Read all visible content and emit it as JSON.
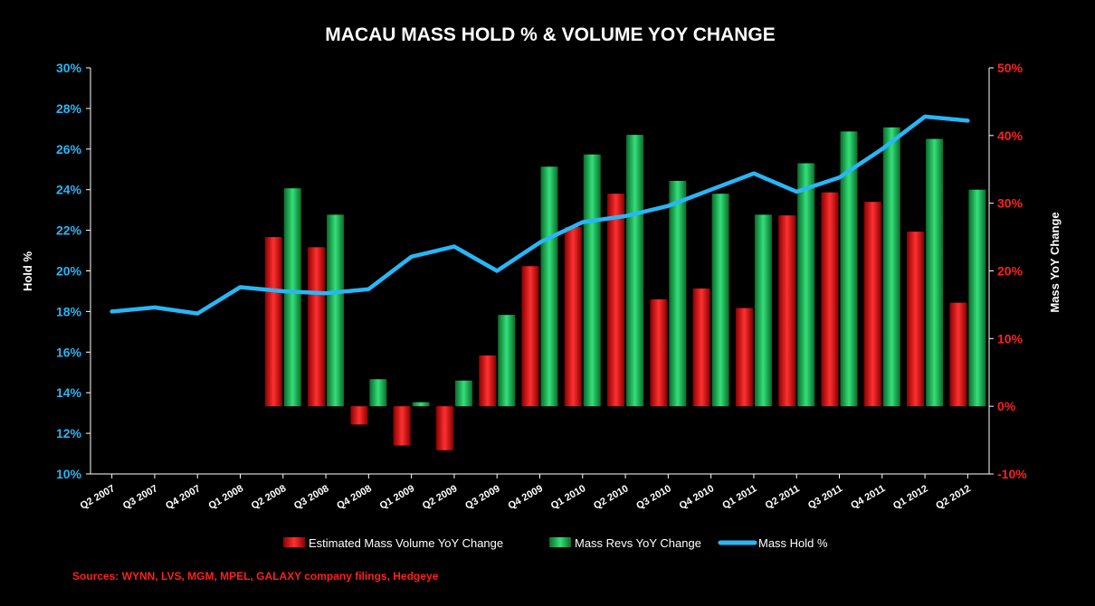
{
  "chart_data": {
    "type": "bar",
    "title": "MACAU MASS HOLD % & VOLUME YOY CHANGE",
    "source": "Sources: WYNN, LVS, MGM, MPEL, GALAXY company filings, Hedgeye",
    "ylabel_left": "Hold %",
    "ylabel_right": "Mass YoY Change",
    "ylim_left": [
      0.1,
      0.3
    ],
    "ylim_right": [
      -0.1,
      0.5
    ],
    "yticks_left": [
      "10%",
      "12%",
      "14%",
      "16%",
      "18%",
      "20%",
      "22%",
      "24%",
      "26%",
      "28%",
      "30%"
    ],
    "yticks_right": [
      "-10%",
      "0%",
      "10%",
      "20%",
      "30%",
      "40%",
      "50%"
    ],
    "categories": [
      "Q2 2007",
      "Q3 2007",
      "Q4 2007",
      "Q1 2008",
      "Q2 2008",
      "Q3 2008",
      "Q4 2008",
      "Q1 2009",
      "Q2 2009",
      "Q3 2009",
      "Q4 2009",
      "Q1 2010",
      "Q2 2010",
      "Q3 2010",
      "Q4 2010",
      "Q1 2011",
      "Q2 2011",
      "Q3 2011",
      "Q4 2011",
      "Q1 2012",
      "Q2 2012"
    ],
    "series": [
      {
        "name": "Estimated Mass Volume YoY Change",
        "axis": "right",
        "kind": "bar",
        "color": "#ff1a1a",
        "values": [
          null,
          null,
          null,
          null,
          0.25,
          0.235,
          -0.027,
          -0.058,
          -0.065,
          0.075,
          0.207,
          0.265,
          0.314,
          0.158,
          0.174,
          0.145,
          0.282,
          0.316,
          0.302,
          0.258,
          0.153
        ]
      },
      {
        "name": "Mass Revs YoY Change",
        "axis": "right",
        "kind": "bar",
        "color": "#1db954",
        "values": [
          null,
          null,
          null,
          null,
          0.322,
          0.283,
          0.04,
          0.006,
          0.038,
          0.135,
          0.354,
          0.372,
          0.401,
          0.333,
          0.314,
          0.283,
          0.359,
          0.406,
          0.412,
          0.395,
          0.32
        ]
      },
      {
        "name": "Mass Hold %",
        "axis": "left",
        "kind": "line",
        "color": "#29b6f6",
        "values": [
          0.18,
          0.182,
          0.179,
          0.192,
          0.19,
          0.189,
          0.191,
          0.207,
          0.212,
          0.2,
          0.214,
          0.224,
          0.227,
          0.232,
          0.24,
          0.248,
          0.239,
          0.246,
          0.26,
          0.276,
          0.274
        ]
      }
    ]
  }
}
